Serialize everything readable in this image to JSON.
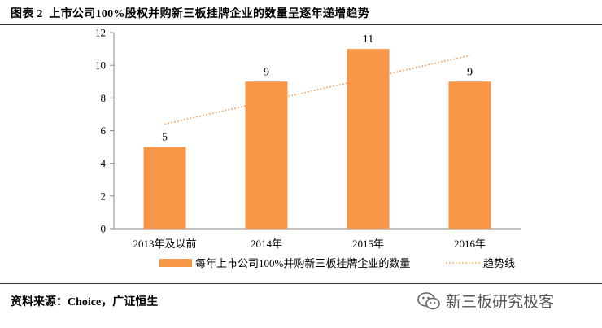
{
  "figure": {
    "label": "图表 2",
    "title": "上市公司100%股权并购新三板挂牌企业的数量呈逐年递增趋势"
  },
  "source_text": "资料来源：Choice，广证恒生",
  "watermark_text": "新三板研究极客",
  "colors": {
    "bar": "#F79646",
    "trend": "#F79646",
    "axis": "#878787"
  },
  "chart_data": {
    "type": "bar",
    "title": "",
    "xlabel": "",
    "ylabel": "",
    "categories": [
      "2013年及以前",
      "2014年",
      "2015年",
      "2016年"
    ],
    "series": [
      {
        "name": "每年上市公司100%并购新三板挂牌企业的数量",
        "values": [
          5,
          9,
          11,
          9
        ]
      }
    ],
    "data_labels": [
      "5",
      "9",
      "11",
      "9"
    ],
    "trendline": {
      "name": "趋势线",
      "type": "linear",
      "style": "dotted"
    },
    "ylim": [
      0,
      12
    ],
    "yticks": [
      0,
      2,
      4,
      6,
      8,
      10,
      12
    ],
    "ytick_labels": [
      "0",
      "2",
      "4",
      "6",
      "8",
      "10",
      "12"
    ],
    "grid": false,
    "legend": "bottom"
  }
}
